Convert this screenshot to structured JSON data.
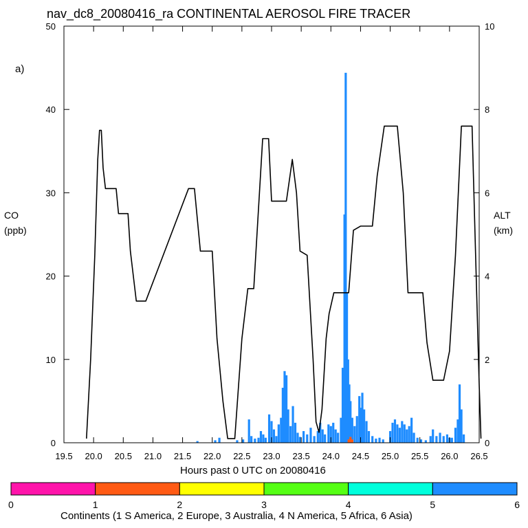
{
  "chart_data": {
    "type": "bar",
    "title": "nav_dc8_20080416_ra CONTINENTAL AEROSOL FIRE TRACER",
    "panel_label": "a)",
    "xlabel": "Hours past 0 UTC on 20080416",
    "ylabel_left": [
      "CO",
      "(ppb)"
    ],
    "ylabel_right": [
      "ALT",
      "(km)"
    ],
    "xlim": [
      19.5,
      26.5
    ],
    "ylim_left": [
      0,
      50
    ],
    "ylim_right": [
      0,
      10
    ],
    "x_ticks": [
      "19.5",
      "20.0",
      "20.5",
      "21.0",
      "21.5",
      "22.0",
      "22.5",
      "23.0",
      "23.5",
      "24.0",
      "24.5",
      "25.0",
      "25.5",
      "26.0",
      "26.5"
    ],
    "y_ticks_left": [
      "0",
      "10",
      "20",
      "30",
      "40",
      "50"
    ],
    "y_ticks_right": [
      "0",
      "2",
      "4",
      "6",
      "8",
      "10"
    ],
    "colors": {
      "asia": "#1e8cff",
      "n_america": "#ff5a14",
      "altitude": "#000000"
    },
    "series": [
      {
        "name": "Asia (6) CO",
        "color": "#1e8cff",
        "points": [
          [
            21.75,
            0.2
          ],
          [
            22.05,
            0.3
          ],
          [
            22.12,
            0.6
          ],
          [
            22.42,
            0.3
          ],
          [
            22.52,
            0.4
          ],
          [
            22.62,
            2.8
          ],
          [
            22.66,
            0.8
          ],
          [
            22.72,
            0.5
          ],
          [
            22.78,
            0.6
          ],
          [
            22.82,
            1.4
          ],
          [
            22.86,
            1.0
          ],
          [
            22.9,
            0.6
          ],
          [
            22.96,
            3.4
          ],
          [
            23.0,
            2.6
          ],
          [
            23.04,
            1.6
          ],
          [
            23.08,
            0.8
          ],
          [
            23.12,
            2.2
          ],
          [
            23.16,
            3.0
          ],
          [
            23.19,
            6.6
          ],
          [
            23.22,
            8.6
          ],
          [
            23.25,
            8.1
          ],
          [
            23.28,
            4.0
          ],
          [
            23.32,
            2.0
          ],
          [
            23.36,
            4.4
          ],
          [
            23.4,
            2.4
          ],
          [
            23.44,
            1.2
          ],
          [
            23.48,
            0.7
          ],
          [
            23.54,
            1.4
          ],
          [
            23.6,
            1.0
          ],
          [
            23.66,
            1.8
          ],
          [
            23.72,
            0.8
          ],
          [
            23.78,
            1.4
          ],
          [
            23.82,
            2.4
          ],
          [
            23.86,
            1.6
          ],
          [
            23.9,
            1.0
          ],
          [
            23.96,
            2.2
          ],
          [
            24.0,
            2.0
          ],
          [
            24.04,
            2.4
          ],
          [
            24.08,
            1.6
          ],
          [
            24.12,
            1.2
          ],
          [
            24.17,
            3.0
          ],
          [
            24.2,
            9.0
          ],
          [
            24.23,
            27.4
          ],
          [
            24.25,
            44.4
          ],
          [
            24.27,
            18.0
          ],
          [
            24.29,
            10.0
          ],
          [
            24.31,
            7.0
          ],
          [
            24.33,
            5.0
          ],
          [
            24.36,
            3.0
          ],
          [
            24.4,
            2.0
          ],
          [
            24.44,
            3.2
          ],
          [
            24.48,
            5.6
          ],
          [
            24.5,
            4.2
          ],
          [
            24.53,
            6.0
          ],
          [
            24.56,
            4.0
          ],
          [
            24.6,
            2.6
          ],
          [
            24.64,
            1.4
          ],
          [
            24.7,
            0.8
          ],
          [
            24.76,
            0.5
          ],
          [
            24.82,
            0.6
          ],
          [
            24.88,
            0.4
          ],
          [
            25.0,
            1.4
          ],
          [
            25.04,
            2.4
          ],
          [
            25.08,
            2.8
          ],
          [
            25.12,
            2.2
          ],
          [
            25.16,
            1.8
          ],
          [
            25.2,
            2.6
          ],
          [
            25.24,
            2.2
          ],
          [
            25.28,
            1.6
          ],
          [
            25.32,
            2.0
          ],
          [
            25.36,
            3.0
          ],
          [
            25.4,
            1.2
          ],
          [
            25.46,
            0.6
          ],
          [
            25.52,
            0.4
          ],
          [
            25.6,
            0.3
          ],
          [
            25.68,
            0.8
          ],
          [
            25.72,
            1.6
          ],
          [
            25.78,
            0.8
          ],
          [
            25.84,
            1.2
          ],
          [
            25.9,
            0.8
          ],
          [
            25.96,
            1.0
          ],
          [
            26.0,
            0.6
          ],
          [
            26.04,
            0.6
          ],
          [
            26.1,
            1.8
          ],
          [
            26.14,
            2.8
          ],
          [
            26.17,
            7.0
          ],
          [
            26.2,
            4.0
          ],
          [
            26.24,
            1.0
          ]
        ]
      },
      {
        "name": "N America (4) CO",
        "color": "#ff5a14",
        "points": [
          [
            24.3,
            0.4
          ],
          [
            24.33,
            0.7
          ],
          [
            24.36,
            0.4
          ]
        ]
      }
    ],
    "altitude_km": {
      "name": "Aircraft altitude (km)",
      "points": [
        [
          19.88,
          0.1
        ],
        [
          19.95,
          2.0
        ],
        [
          20.02,
          4.5
        ],
        [
          20.07,
          6.8
        ],
        [
          20.1,
          7.5
        ],
        [
          20.13,
          7.5
        ],
        [
          20.16,
          6.6
        ],
        [
          20.2,
          6.1
        ],
        [
          20.38,
          6.1
        ],
        [
          20.42,
          5.5
        ],
        [
          20.58,
          5.5
        ],
        [
          20.62,
          4.6
        ],
        [
          20.72,
          3.4
        ],
        [
          20.88,
          3.4
        ],
        [
          21.6,
          6.1
        ],
        [
          21.7,
          6.1
        ],
        [
          21.8,
          4.6
        ],
        [
          22.0,
          4.6
        ],
        [
          22.08,
          2.5
        ],
        [
          22.18,
          1.0
        ],
        [
          22.26,
          0.1
        ],
        [
          22.38,
          0.1
        ],
        [
          22.5,
          2.5
        ],
        [
          22.6,
          3.7
        ],
        [
          22.7,
          3.7
        ],
        [
          22.85,
          7.3
        ],
        [
          22.95,
          7.3
        ],
        [
          23.0,
          5.8
        ],
        [
          23.25,
          5.8
        ],
        [
          23.35,
          6.8
        ],
        [
          23.42,
          6.0
        ],
        [
          23.48,
          4.6
        ],
        [
          23.6,
          4.5
        ],
        [
          23.7,
          2.0
        ],
        [
          23.75,
          0.5
        ],
        [
          23.8,
          0.25
        ],
        [
          23.85,
          0.8
        ],
        [
          23.92,
          2.5
        ],
        [
          23.97,
          3.1
        ],
        [
          24.05,
          3.6
        ],
        [
          24.3,
          3.6
        ],
        [
          24.38,
          5.1
        ],
        [
          24.5,
          5.2
        ],
        [
          24.7,
          5.2
        ],
        [
          24.78,
          6.4
        ],
        [
          24.9,
          7.6
        ],
        [
          25.12,
          7.6
        ],
        [
          25.22,
          6.0
        ],
        [
          25.3,
          3.6
        ],
        [
          25.55,
          3.6
        ],
        [
          25.62,
          2.4
        ],
        [
          25.72,
          1.5
        ],
        [
          25.9,
          1.5
        ],
        [
          26.0,
          2.2
        ],
        [
          26.1,
          4.5
        ],
        [
          26.2,
          7.6
        ],
        [
          26.38,
          7.6
        ],
        [
          26.43,
          5.0
        ],
        [
          26.5,
          1.4
        ],
        [
          26.53,
          0.1
        ]
      ]
    },
    "colorbar": {
      "title": "Continents (1 S America, 2 Europe, 3 Australia, 4 N America, 5 Africa, 6 Asia)",
      "ticks": [
        "0",
        "1",
        "2",
        "3",
        "4",
        "5",
        "6"
      ],
      "colors": [
        "#ff14aa",
        "#ff5a14",
        "#ffff00",
        "#55ff14",
        "#00ffdc",
        "#1e8cff"
      ]
    }
  }
}
